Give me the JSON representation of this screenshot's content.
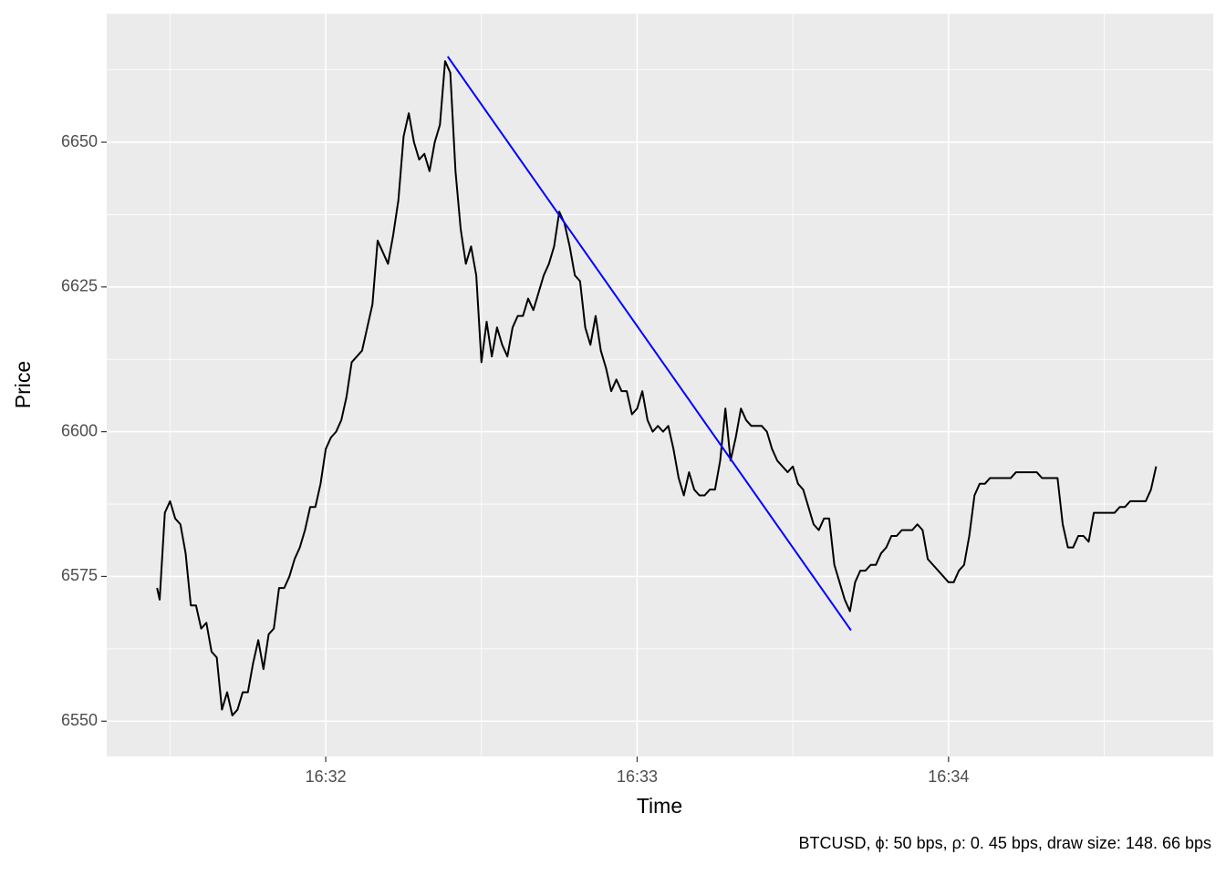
{
  "chart_data": {
    "type": "line",
    "xlabel": "Time",
    "ylabel": "Price",
    "caption": "BTCUSD, ϕ: 50 bps, ρ: 0. 45 bps, draw size: 148. 66 bps",
    "xlim": [
      17.8,
      231.0
    ],
    "xticks": [
      {
        "value": 60,
        "label": "16:32"
      },
      {
        "value": 120,
        "label": "16:33"
      },
      {
        "value": 180,
        "label": "16:34"
      }
    ],
    "xminorticks": [
      30,
      90,
      150,
      210
    ],
    "ylim": [
      6543.9,
      6672.2
    ],
    "yticks": [
      6550,
      6575,
      6600,
      6625,
      6650
    ],
    "yminorticks": [
      6562.5,
      6587.5,
      6612.5,
      6637.5,
      6662.5
    ],
    "grid": true,
    "series": [
      {
        "color": "#000000",
        "x": [
          27.5,
          28,
          29,
          30,
          31,
          32,
          33,
          34,
          35,
          36,
          37,
          38,
          39,
          40,
          41,
          42,
          43,
          44,
          45,
          46,
          47,
          48,
          49,
          50,
          51,
          52,
          53,
          54,
          55,
          56,
          57,
          58,
          59,
          60,
          61,
          62,
          63,
          64,
          65,
          66,
          67,
          68,
          69,
          70,
          71,
          72,
          73,
          74,
          75,
          76,
          77,
          78,
          79,
          80,
          81,
          82,
          83,
          84,
          85,
          86,
          87,
          88,
          89,
          90,
          91,
          92,
          93,
          94,
          95,
          96,
          97,
          98,
          99,
          100,
          101,
          102,
          103,
          104,
          105,
          106,
          107,
          108,
          109,
          110,
          111,
          112,
          113,
          114,
          115,
          116,
          117,
          118,
          119,
          120,
          121,
          122,
          123,
          124,
          125,
          126,
          127,
          128,
          129,
          130,
          131,
          132,
          133,
          134,
          135,
          136,
          137,
          138,
          139,
          140,
          141,
          142,
          143,
          144,
          145,
          146,
          147,
          148,
          149,
          150,
          151,
          152,
          153,
          154,
          155,
          156,
          157,
          158,
          159,
          160,
          161,
          162,
          163,
          164,
          165,
          166,
          167,
          168,
          169,
          170,
          171,
          172,
          173,
          174,
          175,
          176,
          177,
          178,
          179,
          180,
          181,
          182,
          183,
          184,
          185,
          186,
          187,
          188,
          189,
          190,
          191,
          192,
          193,
          194,
          195,
          196,
          197,
          198,
          199,
          200,
          201,
          202,
          203,
          204,
          205,
          206,
          207,
          208,
          209,
          210,
          211,
          212,
          213,
          214,
          215,
          216,
          217,
          218,
          219,
          220
        ],
        "values": [
          6573,
          6571,
          6586,
          6588,
          6585,
          6584,
          6579,
          6570,
          6570,
          6566,
          6567,
          6562,
          6561,
          6552,
          6555,
          6551,
          6552,
          6555,
          6555,
          6560,
          6564,
          6559,
          6565,
          6566,
          6573,
          6573,
          6575,
          6578,
          6580,
          6583,
          6587,
          6587,
          6591,
          6597,
          6599,
          6600,
          6602,
          6606,
          6612,
          6613,
          6614,
          6618,
          6622,
          6633,
          6631,
          6629,
          6634,
          6640,
          6651,
          6655,
          6650,
          6647,
          6648,
          6645,
          6650,
          6653,
          6664,
          6662,
          6645,
          6635,
          6629,
          6632,
          6627,
          6612,
          6619,
          6613,
          6618,
          6615,
          6613,
          6618,
          6620,
          6620,
          6623,
          6621,
          6624,
          6627,
          6629,
          6632,
          6638,
          6636,
          6632,
          6627,
          6626,
          6618,
          6615,
          6620,
          6614,
          6611,
          6607,
          6609,
          6607,
          6607,
          6603,
          6604,
          6607,
          6602,
          6600,
          6601,
          6600,
          6601,
          6597,
          6592,
          6589,
          6593,
          6590,
          6589,
          6589,
          6590,
          6590,
          6595,
          6604,
          6595,
          6599,
          6604,
          6602,
          6601,
          6601,
          6601,
          6600,
          6597,
          6595,
          6594,
          6593,
          6594,
          6591,
          6590,
          6587,
          6584,
          6583,
          6585,
          6585,
          6577,
          6574,
          6571,
          6569,
          6574,
          6576,
          6576,
          6577,
          6577,
          6579,
          6580,
          6582,
          6582,
          6583,
          6583,
          6583,
          6584,
          6583,
          6578,
          6577,
          6576,
          6575,
          6574,
          6574,
          6576,
          6577,
          6582,
          6589,
          6591,
          6591,
          6592,
          6592,
          6592,
          6592,
          6592,
          6593,
          6593,
          6593,
          6593,
          6593,
          6592,
          6592,
          6592,
          6592,
          6584,
          6580,
          6580,
          6582,
          6582,
          6581,
          6586,
          6586,
          6586,
          6586,
          6586,
          6587,
          6587,
          6588,
          6588,
          6588,
          6588,
          6590,
          6594
        ]
      },
      {
        "color": "#0000ff",
        "x": [
          83.5,
          161.2
        ],
        "values": [
          6664.8,
          6565.7
        ]
      }
    ]
  }
}
